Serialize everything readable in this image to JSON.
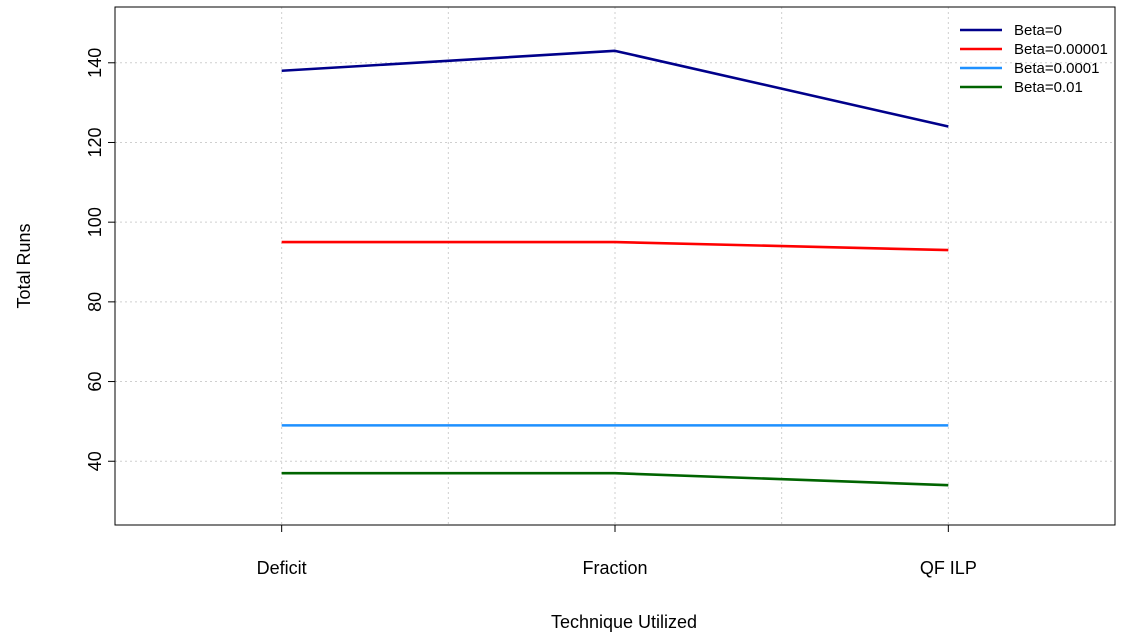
{
  "chart_data": {
    "type": "line",
    "title": "",
    "xlabel": "Technique Utilized",
    "ylabel": "Total Runs",
    "categories": [
      "Deficit",
      "Fraction",
      "QF ILP"
    ],
    "xlim": [
      -0.5,
      2.5
    ],
    "ylim": [
      24,
      154
    ],
    "yticks": [
      40,
      60,
      80,
      100,
      120,
      140
    ],
    "grid": true,
    "legend_position": "top-right",
    "series": [
      {
        "name": "Beta=0",
        "values": [
          138,
          143,
          124
        ],
        "color": "#00008B"
      },
      {
        "name": "Beta=0.00001",
        "values": [
          95,
          95,
          93
        ],
        "color": "#FF0000"
      },
      {
        "name": "Beta=0.0001",
        "values": [
          49,
          49,
          49
        ],
        "color": "#1E90FF"
      },
      {
        "name": "Beta=0.01",
        "values": [
          37,
          37,
          34
        ],
        "color": "#006400"
      }
    ]
  }
}
